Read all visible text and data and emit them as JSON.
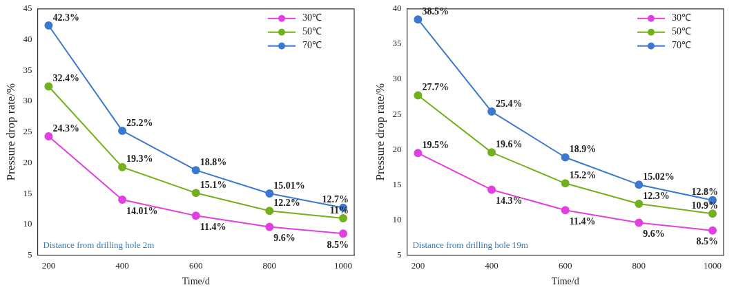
{
  "chart_data": [
    {
      "type": "line",
      "xlabel": "Time/d",
      "ylabel": "Pressure drop rate/%",
      "x": [
        200,
        400,
        600,
        800,
        1000
      ],
      "xlim": [
        170,
        1030
      ],
      "xticks": [
        200,
        400,
        600,
        800,
        1000
      ],
      "ylim": [
        5,
        45
      ],
      "yticks": [
        5,
        10,
        15,
        20,
        25,
        30,
        35,
        40,
        45
      ],
      "grid": false,
      "legend": "top right",
      "marker": "circle",
      "line_style": "solid",
      "annotations": [
        "Distance from drilling hole 2m"
      ],
      "series": [
        {
          "name": "30℃",
          "color": "#e040e0",
          "values": [
            24.3,
            14.01,
            11.4,
            9.6,
            8.5
          ],
          "value_labels": [
            "24.3%",
            "14.01%",
            "11.4%",
            "9.6%",
            "8.5%"
          ]
        },
        {
          "name": "50℃",
          "color": "#72b01d",
          "values": [
            32.4,
            19.3,
            15.1,
            12.2,
            11
          ],
          "value_labels": [
            "32.4%",
            "19.3%",
            "15.1%",
            "12.2%",
            "11%"
          ]
        },
        {
          "name": "70℃",
          "color": "#3b78d0",
          "values": [
            42.3,
            25.2,
            18.8,
            15.01,
            12.7
          ],
          "value_labels": [
            "42.3%",
            "25.2%",
            "18.8%",
            "15.01%",
            "12.7%"
          ]
        }
      ]
    },
    {
      "type": "line",
      "xlabel": "Time/d",
      "ylabel": "Pressure drop rate/%",
      "x": [
        200,
        400,
        600,
        800,
        1000
      ],
      "xlim": [
        170,
        1030
      ],
      "xticks": [
        200,
        400,
        600,
        800,
        1000
      ],
      "ylim": [
        5,
        40
      ],
      "yticks": [
        5,
        10,
        15,
        20,
        25,
        30,
        35,
        40
      ],
      "grid": false,
      "legend": "top right",
      "marker": "circle",
      "line_style": "solid",
      "annotations": [
        "Distance from drilling hole 19m"
      ],
      "series": [
        {
          "name": "30℃",
          "color": "#e040e0",
          "values": [
            19.5,
            14.3,
            11.4,
            9.6,
            8.5
          ],
          "value_labels": [
            "19.5%",
            "14.3%",
            "11.4%",
            "9.6%",
            "8.5%"
          ]
        },
        {
          "name": "50℃",
          "color": "#72b01d",
          "values": [
            27.7,
            19.6,
            15.2,
            12.3,
            10.9
          ],
          "value_labels": [
            "27.7%",
            "19.6%",
            "15.2%",
            "12.3%",
            "10.9%"
          ]
        },
        {
          "name": "70℃",
          "color": "#3b78d0",
          "values": [
            38.5,
            25.4,
            18.9,
            15.02,
            12.8
          ],
          "value_labels": [
            "38.5%",
            "25.4%",
            "18.9%",
            "15.02%",
            "12.8%"
          ]
        }
      ]
    }
  ]
}
